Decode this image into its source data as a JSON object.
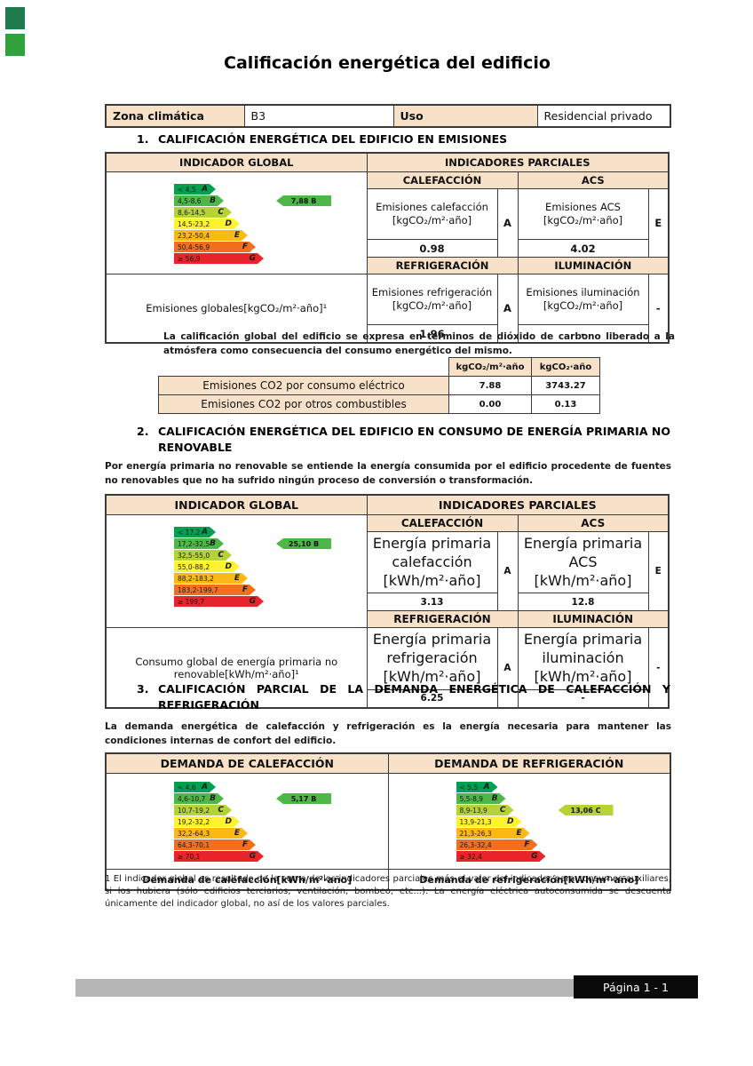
{
  "page": {
    "title": "Calificación energética del edificio",
    "footer_page_label": "Página 1 - 1"
  },
  "colors": {
    "band_A": "#00a04e",
    "band_B": "#4db748",
    "band_C": "#b5d334",
    "band_D": "#fff22e",
    "band_E": "#fcb813",
    "band_F": "#f2701d",
    "band_G": "#e8232a",
    "header_bg": "#f7e2c9",
    "footer_bar": "#b5b5b5",
    "footer_box": "#0a0a0a"
  },
  "meta_table": {
    "zona_label": "Zona climática",
    "zona_value": "B3",
    "uso_label": "Uso",
    "uso_value": "Residencial privado"
  },
  "section1": {
    "number": "1.",
    "title": "CALIFICACIÓN ENERGÉTICA DEL EDIFICIO EN EMISIONES",
    "table": {
      "global_header": "INDICADOR GLOBAL",
      "partial_header": "INDICADORES PARCIALES",
      "chart": {
        "type": "energy-rating-scale",
        "bands": [
          {
            "range": "< 4,5",
            "letter": "A"
          },
          {
            "range": "4,5-8,6",
            "letter": "B"
          },
          {
            "range": "8,6-14,5",
            "letter": "C"
          },
          {
            "range": "14,5-23,2",
            "letter": "D"
          },
          {
            "range": "23,2-50,4",
            "letter": "E"
          },
          {
            "range": "50,4-56,9",
            "letter": "F"
          },
          {
            "range": "≥ 56,9",
            "letter": "G"
          }
        ],
        "marker": {
          "label": "7,88 B",
          "band": "B"
        }
      },
      "calefaccion": {
        "header": "CALEFACCIÓN",
        "label": "Emisiones calefacción [kgCO₂/m²·año]",
        "letter": "A",
        "value": "0.98"
      },
      "acs": {
        "header": "ACS",
        "label": "Emisiones ACS [kgCO₂/m²·año]",
        "letter": "E",
        "value": "4.02"
      },
      "refrigeracion": {
        "header": "REFRIGERACIÓN",
        "label": "Emisiones refrigeración [kgCO₂/m²·año]",
        "letter": "A",
        "value": "1.96"
      },
      "iluminacion": {
        "header": "ILUMINACIÓN",
        "label": "Emisiones iluminación [kgCO₂/m²·año]",
        "letter": "-",
        "value": "-"
      },
      "global_label": "Emisiones globales[kgCO₂/m²·año]¹"
    },
    "note": "La calificación global del edificio se expresa en términos de dióxido de carbono liberado a la atmósfera como consecuencia del consumo energético del mismo.",
    "emissions_table": {
      "col1": "kgCO₂/m²·año",
      "col2": "kgCO₂·año",
      "rows": [
        {
          "label": "Emisiones CO2 por consumo eléctrico",
          "v1": "7.88",
          "v2": "3743.27"
        },
        {
          "label": "Emisiones CO2 por otros combustibles",
          "v1": "0.00",
          "v2": "0.13"
        }
      ]
    }
  },
  "section2": {
    "number": "2.",
    "title": "CALIFICACIÓN ENERGÉTICA DEL EDIFICIO EN CONSUMO DE ENERGÍA PRIMARIA NO RENOVABLE",
    "intro": "Por energía primaria no renovable se entiende la energía consumida por el edificio procedente de fuentes no renovables que no ha sufrido ningún proceso de conversión o transformación.",
    "table": {
      "global_header": "INDICADOR GLOBAL",
      "partial_header": "INDICADORES PARCIALES",
      "chart": {
        "type": "energy-rating-scale",
        "bands": [
          {
            "range": "< 17,2",
            "letter": "A"
          },
          {
            "range": "17,2-32,5",
            "letter": "B"
          },
          {
            "range": "32,5-55,0",
            "letter": "C"
          },
          {
            "range": "55,0-88,2",
            "letter": "D"
          },
          {
            "range": "88,2-183,2",
            "letter": "E"
          },
          {
            "range": "183,2-199,7",
            "letter": "F"
          },
          {
            "range": "≥ 199,7",
            "letter": "G"
          }
        ],
        "marker": {
          "label": "25,10 B",
          "band": "B"
        }
      },
      "calefaccion": {
        "header": "CALEFACCIÓN",
        "label": "Energía primaria calefacción [kWh/m²·año]",
        "letter": "A",
        "value": "3.13"
      },
      "acs": {
        "header": "ACS",
        "label": "Energía primaria ACS [kWh/m²·año]",
        "letter": "E",
        "value": "12.8"
      },
      "refrigeracion": {
        "header": "REFRIGERACIÓN",
        "label": "Energía primaria refrigeración [kWh/m²·año]",
        "letter": "A",
        "value": "6.25"
      },
      "iluminacion": {
        "header": "ILUMINACIÓN",
        "label": "Energía primaria iluminación [kWh/m²·año]",
        "letter": "-",
        "value": "-"
      },
      "global_label": "Consumo global de energía primaria no renovable[kWh/m²·año]¹"
    }
  },
  "section3": {
    "number": "3.",
    "title": "CALIFICACIÓN PARCIAL DE LA DEMANDA ENERGÉTICA DE CALEFACCIÓN Y REFRIGERACIÓN",
    "intro": "La demanda energética de calefacción y refrigeración es la energía necesaria para mantener las condiciones internas de confort del edificio.",
    "calefaccion": {
      "header": "DEMANDA DE CALEFACCIÓN",
      "chart": {
        "type": "energy-rating-scale",
        "bands": [
          {
            "range": "< 4,6",
            "letter": "A"
          },
          {
            "range": "4,6-10,7",
            "letter": "B"
          },
          {
            "range": "10,7-19,2",
            "letter": "C"
          },
          {
            "range": "19,2-32,2",
            "letter": "D"
          },
          {
            "range": "32,2-64,3",
            "letter": "E"
          },
          {
            "range": "64,3-70,1",
            "letter": "F"
          },
          {
            "range": "≥ 70,1",
            "letter": "G"
          }
        ],
        "marker": {
          "label": "5,17 B",
          "band": "B"
        }
      },
      "footer": "Demanda de calefacción[kWh/m²·año]"
    },
    "refrigeracion": {
      "header": "DEMANDA DE REFRIGERACIÓN",
      "chart": {
        "type": "energy-rating-scale",
        "bands": [
          {
            "range": "< 5,5",
            "letter": "A"
          },
          {
            "range": "5,5-8,9",
            "letter": "B"
          },
          {
            "range": "8,9-13,9",
            "letter": "C"
          },
          {
            "range": "13,9-21,3",
            "letter": "D"
          },
          {
            "range": "21,3-26,3",
            "letter": "E"
          },
          {
            "range": "26,3-32,4",
            "letter": "F"
          },
          {
            "range": "≥ 32,4",
            "letter": "G"
          }
        ],
        "marker": {
          "label": "13,06 C",
          "band": "C"
        }
      },
      "footer": "Demanda de refrigeración[kWh/m²·año]"
    }
  },
  "footnote": "1 El indicador global es resultado de la suma de los indicadores parciales más el valor del indicador para consumos auxiliares, si los hubiera (sólo edificios terciarios, ventilación, bombeo, etc...). La energía eléctrica autoconsumida se descuenta únicamente del indicador global, no así de los valores parciales."
}
